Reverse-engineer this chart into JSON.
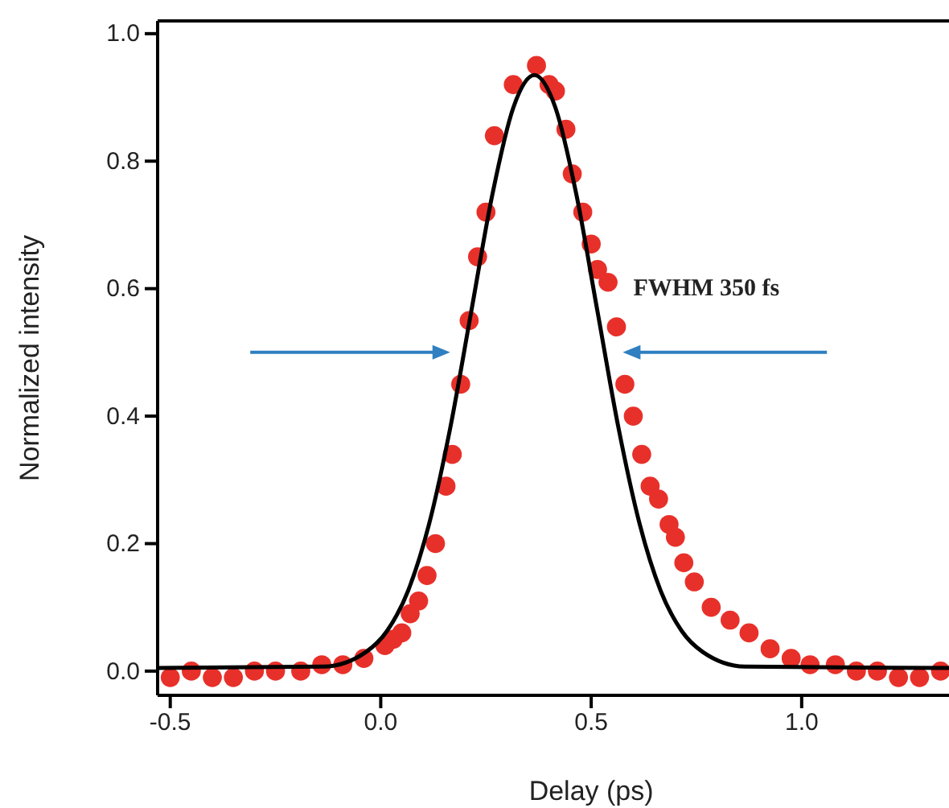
{
  "chart_data": {
    "type": "scatter",
    "xlabel": "Delay (ps)",
    "ylabel": "Normalized intensity",
    "xlim": [
      -0.53,
      1.35
    ],
    "ylim": [
      -0.038,
      1.02
    ],
    "xticks": [
      {
        "value": -0.5,
        "label": "-0.5"
      },
      {
        "value": 0,
        "label": "0.0"
      },
      {
        "value": 0.5,
        "label": "0.5"
      },
      {
        "value": 1,
        "label": "1.0"
      }
    ],
    "yticks": [
      {
        "value": 0,
        "label": "0.0"
      },
      {
        "value": 0.2,
        "label": "0.2"
      },
      {
        "value": 0.4,
        "label": "0.4"
      },
      {
        "value": 0.6,
        "label": "0.6"
      },
      {
        "value": 0.8,
        "label": "0.8"
      },
      {
        "value": 1,
        "label": "1.0"
      }
    ],
    "grid": false,
    "annotations": [
      "FWHM 350 fs"
    ],
    "series": [
      {
        "marker": "circle",
        "color": "#e8302a",
        "x": [
          -0.5,
          -0.45,
          -0.4,
          -0.35,
          -0.3,
          -0.25,
          -0.19,
          -0.14,
          -0.09,
          -0.04,
          0.01,
          0.03,
          0.05,
          0.07,
          0.09,
          0.11,
          0.13,
          0.155,
          0.17,
          0.19,
          0.21,
          0.23,
          0.25,
          0.27,
          0.315,
          0.37,
          0.4,
          0.415,
          0.44,
          0.455,
          0.48,
          0.5,
          0.515,
          0.54,
          0.56,
          0.58,
          0.6,
          0.62,
          0.64,
          0.66,
          0.685,
          0.7,
          0.72,
          0.745,
          0.785,
          0.83,
          0.875,
          0.925,
          0.975,
          1.02,
          1.08,
          1.13,
          1.18,
          1.23,
          1.28,
          1.33
        ],
        "values": [
          -0.01,
          0,
          -0.01,
          -0.01,
          0,
          0,
          0,
          0.01,
          0.01,
          0.02,
          0.04,
          0.05,
          0.06,
          0.09,
          0.11,
          0.15,
          0.2,
          0.29,
          0.34,
          0.45,
          0.55,
          0.65,
          0.72,
          0.84,
          0.92,
          0.95,
          0.92,
          0.91,
          0.85,
          0.78,
          0.72,
          0.67,
          0.63,
          0.61,
          0.54,
          0.45,
          0.4,
          0.34,
          0.29,
          0.27,
          0.23,
          0.21,
          0.17,
          0.14,
          0.1,
          0.08,
          0.06,
          0.035,
          0.02,
          0.01,
          0.01,
          0,
          0,
          -0.01,
          -0.01,
          0
        ]
      },
      {
        "type": "line",
        "color": "#000000",
        "line_style": "solid",
        "x": [
          -0.53,
          -0.135,
          -0.035,
          0.015,
          0.065,
          0.115,
          0.165,
          0.215,
          0.265,
          0.315,
          0.365,
          0.415,
          0.465,
          0.515,
          0.565,
          0.615,
          0.665,
          0.715,
          0.765,
          0.865,
          1.35
        ],
        "values": [
          0.005,
          0.007,
          0.03,
          0.063,
          0.126,
          0.231,
          0.381,
          0.564,
          0.747,
          0.884,
          0.935,
          0.884,
          0.747,
          0.564,
          0.381,
          0.231,
          0.126,
          0.063,
          0.03,
          0.007,
          0.005
        ]
      }
    ]
  }
}
